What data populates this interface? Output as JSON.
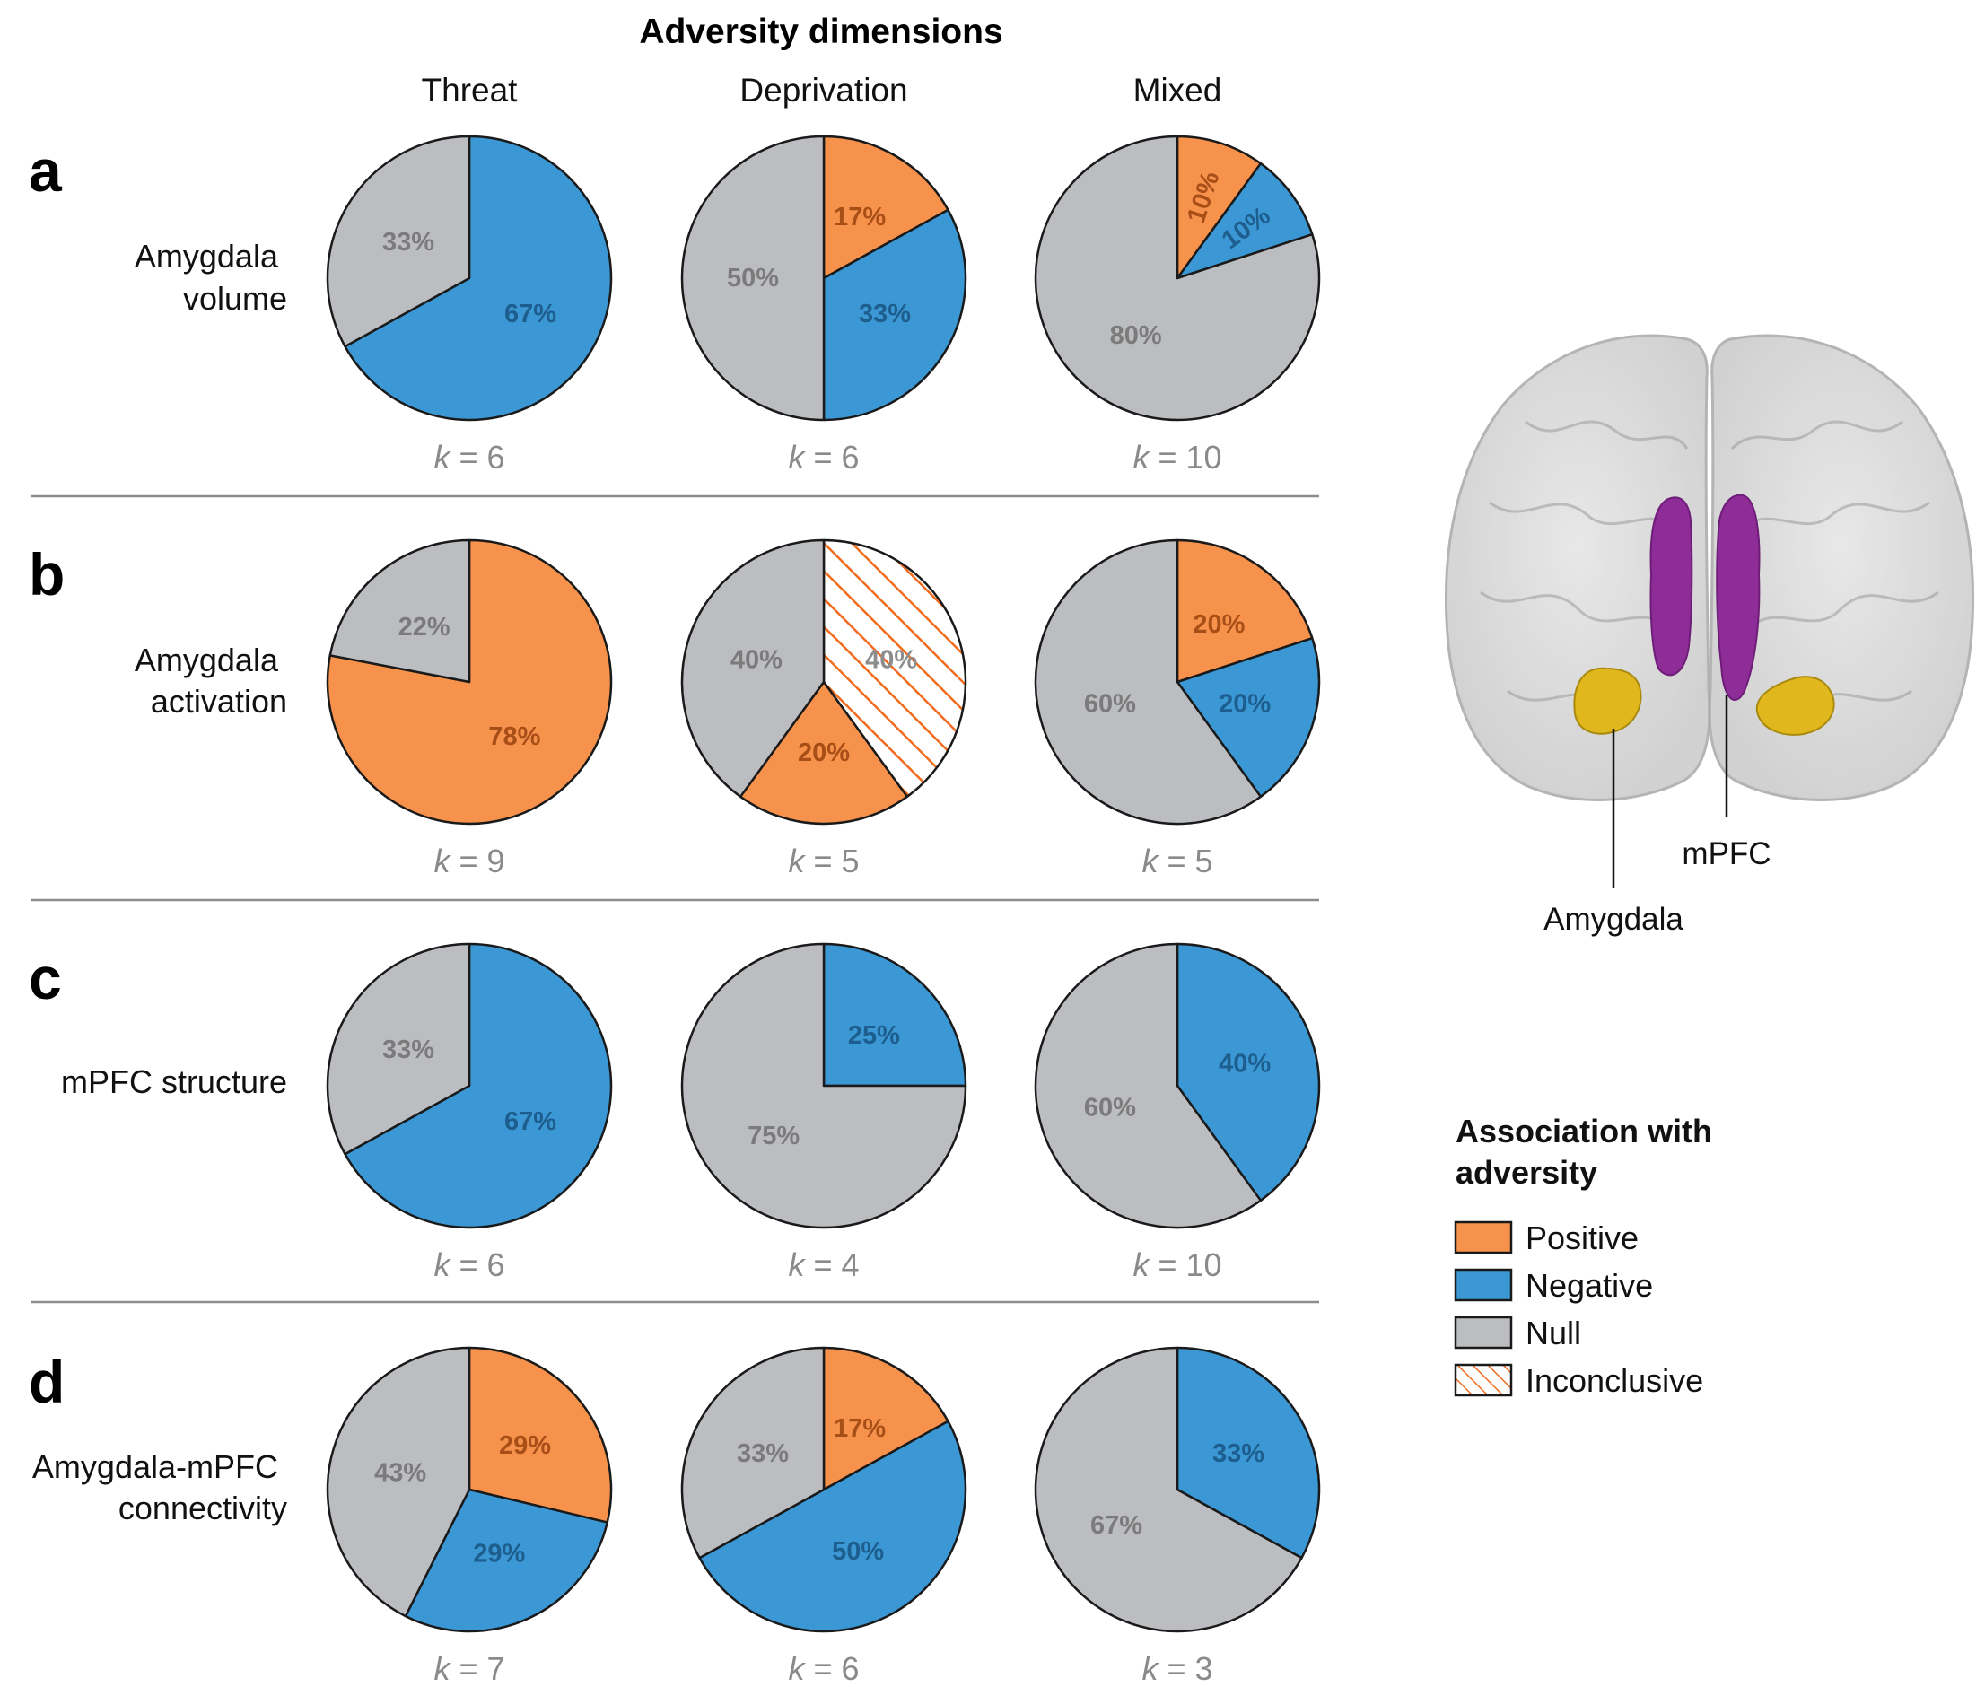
{
  "figure": {
    "title": "Adversity dimensions",
    "columns": [
      "Threat",
      "Deprivation",
      "Mixed"
    ],
    "rows": [
      {
        "panel": "a",
        "label_lines": [
          "Amygdala",
          "volume"
        ]
      },
      {
        "panel": "b",
        "label_lines": [
          "Amygdala",
          "activation"
        ]
      },
      {
        "panel": "c",
        "label_lines": [
          "mPFC structure"
        ]
      },
      {
        "panel": "d",
        "label_lines": [
          "Amygdala-mPFC",
          "connectivity"
        ]
      }
    ]
  },
  "colors": {
    "Positive": "#f6924c",
    "Negative": "#3b98d5",
    "Null": "#bcbdc1",
    "Inconclusive": "#f06b1e"
  },
  "legend": {
    "title_lines": [
      "Association with",
      "adversity"
    ],
    "items": [
      "Positive",
      "Negative",
      "Null",
      "Inconclusive"
    ]
  },
  "brain": {
    "labels": {
      "amygdala": "Amygdala",
      "mpfc": "mPFC"
    }
  },
  "chart_data": [
    {
      "type": "pie",
      "row": "Amygdala volume",
      "column": "Threat",
      "k": 6,
      "slices": [
        {
          "category": "Negative",
          "value": 67,
          "label": "67%"
        },
        {
          "category": "Null",
          "value": 33,
          "label": "33%"
        }
      ]
    },
    {
      "type": "pie",
      "row": "Amygdala volume",
      "column": "Deprivation",
      "k": 6,
      "slices": [
        {
          "category": "Positive",
          "value": 17,
          "label": "17%"
        },
        {
          "category": "Negative",
          "value": 33,
          "label": "33%"
        },
        {
          "category": "Null",
          "value": 50,
          "label": "50%"
        }
      ]
    },
    {
      "type": "pie",
      "row": "Amygdala volume",
      "column": "Mixed",
      "k": 10,
      "slices": [
        {
          "category": "Positive",
          "value": 10,
          "label": "10%"
        },
        {
          "category": "Negative",
          "value": 10,
          "label": "10%"
        },
        {
          "category": "Null",
          "value": 80,
          "label": "80%"
        }
      ]
    },
    {
      "type": "pie",
      "row": "Amygdala activation",
      "column": "Threat",
      "k": 9,
      "slices": [
        {
          "category": "Positive",
          "value": 78,
          "label": "78%"
        },
        {
          "category": "Null",
          "value": 22,
          "label": "22%"
        }
      ]
    },
    {
      "type": "pie",
      "row": "Amygdala activation",
      "column": "Deprivation",
      "k": 5,
      "slices": [
        {
          "category": "Inconclusive",
          "value": 40,
          "label": "40%"
        },
        {
          "category": "Positive",
          "value": 20,
          "label": "20%"
        },
        {
          "category": "Null",
          "value": 40,
          "label": "40%"
        }
      ]
    },
    {
      "type": "pie",
      "row": "Amygdala activation",
      "column": "Mixed",
      "k": 5,
      "slices": [
        {
          "category": "Positive",
          "value": 20,
          "label": "20%"
        },
        {
          "category": "Negative",
          "value": 20,
          "label": "20%"
        },
        {
          "category": "Null",
          "value": 60,
          "label": "60%"
        }
      ]
    },
    {
      "type": "pie",
      "row": "mPFC structure",
      "column": "Threat",
      "k": 6,
      "slices": [
        {
          "category": "Negative",
          "value": 67,
          "label": "67%"
        },
        {
          "category": "Null",
          "value": 33,
          "label": "33%"
        }
      ]
    },
    {
      "type": "pie",
      "row": "mPFC structure",
      "column": "Deprivation",
      "k": 4,
      "slices": [
        {
          "category": "Negative",
          "value": 25,
          "label": "25%"
        },
        {
          "category": "Null",
          "value": 75,
          "label": "75%"
        }
      ]
    },
    {
      "type": "pie",
      "row": "mPFC structure",
      "column": "Mixed",
      "k": 10,
      "slices": [
        {
          "category": "Negative",
          "value": 40,
          "label": "40%"
        },
        {
          "category": "Null",
          "value": 60,
          "label": "60%"
        }
      ]
    },
    {
      "type": "pie",
      "row": "Amygdala-mPFC connectivity",
      "column": "Threat",
      "k": 7,
      "slices": [
        {
          "category": "Positive",
          "value": 29,
          "label": "29%"
        },
        {
          "category": "Negative",
          "value": 29,
          "label": "29%"
        },
        {
          "category": "Null",
          "value": 43,
          "label": "43%"
        }
      ]
    },
    {
      "type": "pie",
      "row": "Amygdala-mPFC connectivity",
      "column": "Deprivation",
      "k": 6,
      "slices": [
        {
          "category": "Positive",
          "value": 17,
          "label": "17%"
        },
        {
          "category": "Negative",
          "value": 50,
          "label": "50%"
        },
        {
          "category": "Null",
          "value": 33,
          "label": "33%"
        }
      ]
    },
    {
      "type": "pie",
      "row": "Amygdala-mPFC connectivity",
      "column": "Mixed",
      "k": 3,
      "slices": [
        {
          "category": "Negative",
          "value": 33,
          "label": "33%"
        },
        {
          "category": "Null",
          "value": 67,
          "label": "67%"
        }
      ]
    }
  ]
}
